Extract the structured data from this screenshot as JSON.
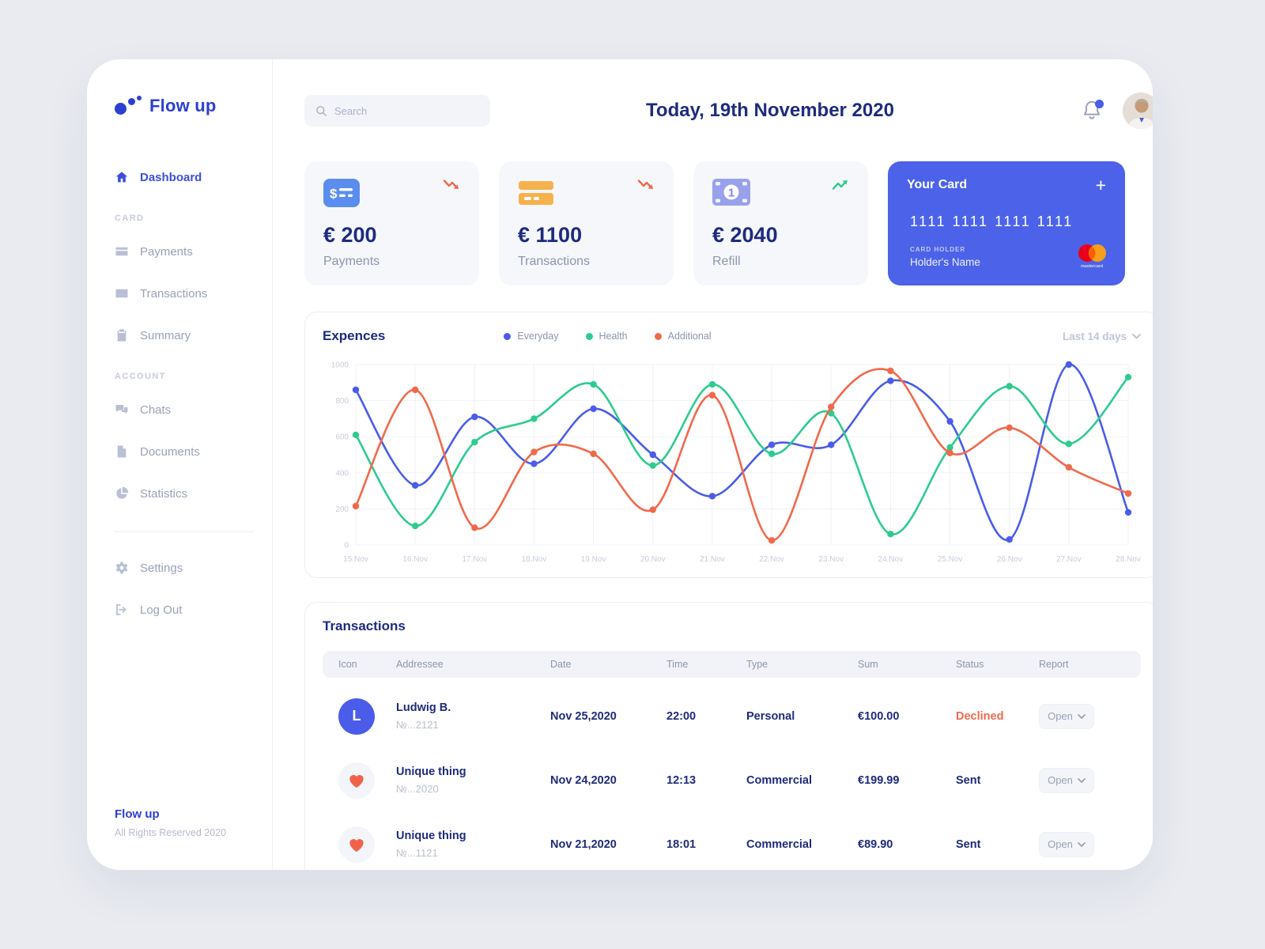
{
  "colors": {
    "accent": "#4a5ce8",
    "green": "#2ecb8f",
    "orange": "#f0694c",
    "navy": "#1e2b7d"
  },
  "sidebar": {
    "logo": "Flow up",
    "dashboard_label": "Dashboard",
    "sections": [
      {
        "title": "CARD",
        "items": [
          "Payments",
          "Transactions",
          "Summary"
        ]
      },
      {
        "title": "ACCOUNT",
        "items": [
          "Chats",
          "Documents",
          "Statistics"
        ]
      }
    ],
    "settings_label": "Settings",
    "logout_label": "Log Out",
    "footer_brand": "Flow up",
    "footer_note": "All Rights Reserved 2020"
  },
  "topbar": {
    "search_placeholder": "Search",
    "title": "Today, 19th November 2020"
  },
  "stats": {
    "cards": [
      {
        "value": "€ 200",
        "label": "Payments",
        "icon": "money-check-icon",
        "trend": "down"
      },
      {
        "value": "€ 1100",
        "label": "Transactions",
        "icon": "credit-card-icon",
        "trend": "down"
      },
      {
        "value": "€ 2040",
        "label": "Refill",
        "icon": "banknote-icon",
        "trend": "up"
      }
    ]
  },
  "bank_card": {
    "title": "Your Card",
    "add_button": "+",
    "number": "1111 1111 1111 1111",
    "holder_label": "CARD HOLDER",
    "holder_name": "Holder's Name",
    "brand": "mastercard"
  },
  "chart_data": {
    "type": "line",
    "title": "Expences",
    "range_label": "Last 14 days",
    "x": [
      "15.Nov",
      "16.Nov",
      "17.Nov",
      "18.Nov",
      "19.Nov",
      "20.Nov",
      "21.Nov",
      "22.Nov",
      "23.Nov",
      "24.Nov",
      "25.Nov",
      "26.Nov",
      "27.Nov",
      "28.Nov"
    ],
    "ylim": [
      0,
      1000
    ],
    "yticks": [
      0,
      200,
      400,
      600,
      800,
      1000
    ],
    "grid": true,
    "legend_position": "top",
    "series": [
      {
        "name": "Everyday",
        "color": "#4a5ce8",
        "values": [
          860,
          330,
          710,
          450,
          755,
          500,
          270,
          555,
          555,
          910,
          685,
          30,
          1000,
          180
        ]
      },
      {
        "name": "Health",
        "color": "#2ecb8f",
        "values": [
          610,
          105,
          570,
          700,
          890,
          440,
          890,
          505,
          730,
          60,
          540,
          880,
          560,
          930
        ]
      },
      {
        "name": "Additional",
        "color": "#f0694c",
        "values": [
          215,
          860,
          95,
          515,
          505,
          195,
          830,
          25,
          765,
          965,
          510,
          650,
          430,
          285
        ]
      }
    ]
  },
  "transactions": {
    "title": "Transactions",
    "columns": [
      "Icon",
      "Addressee",
      "Date",
      "Time",
      "Type",
      "Sum",
      "Status",
      "Report"
    ],
    "open_label": "Open",
    "rows": [
      {
        "avatar": "L",
        "addressee": "Ludwig B.",
        "number": "№...2121",
        "date": "Nov 25,2020",
        "time": "22:00",
        "type": "Personal",
        "sum": "€100.00",
        "status": "Declined",
        "report": "Open"
      },
      {
        "avatar": "heart",
        "addressee": "Unique thing",
        "number": "№...2020",
        "date": "Nov 24,2020",
        "time": "12:13",
        "type": "Commercial",
        "sum": "€199.99",
        "status": "Sent",
        "report": "Open"
      },
      {
        "avatar": "heart",
        "addressee": "Unique thing",
        "number": "№...1121",
        "date": "Nov 21,2020",
        "time": "18:01",
        "type": "Commercial",
        "sum": "€89.90",
        "status": "Sent",
        "report": "Open"
      }
    ]
  }
}
